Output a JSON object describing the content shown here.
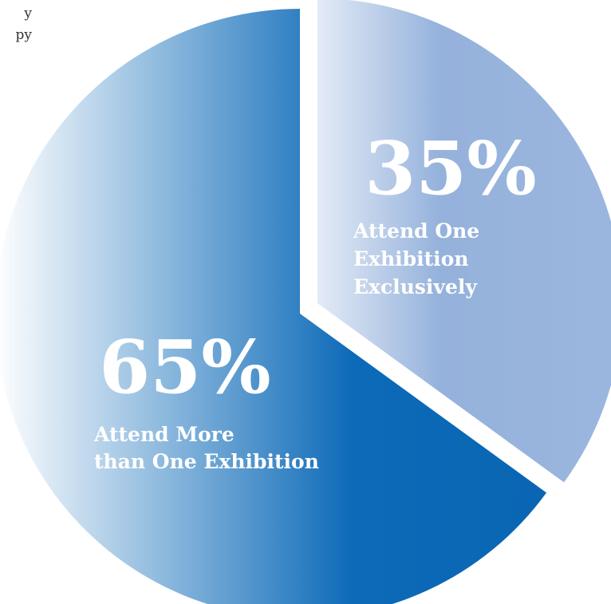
{
  "clipped_text": [
    "y",
    "py"
  ],
  "chart_data": {
    "type": "pie",
    "slices": [
      {
        "value": 65,
        "percent_label": "65%",
        "label_lines": [
          "Attend More",
          "than One Exhibition"
        ],
        "colors": [
          "#ffffff",
          "#0c6ab8",
          "#0a66b3"
        ]
      },
      {
        "value": 35,
        "percent_label": "35%",
        "label_lines": [
          "Attend One",
          "Exhibition",
          "Exclusively"
        ],
        "colors": [
          "#e3ebf6",
          "#95b2dc",
          "#9bb6de"
        ]
      }
    ],
    "exploded_slice": 1
  }
}
